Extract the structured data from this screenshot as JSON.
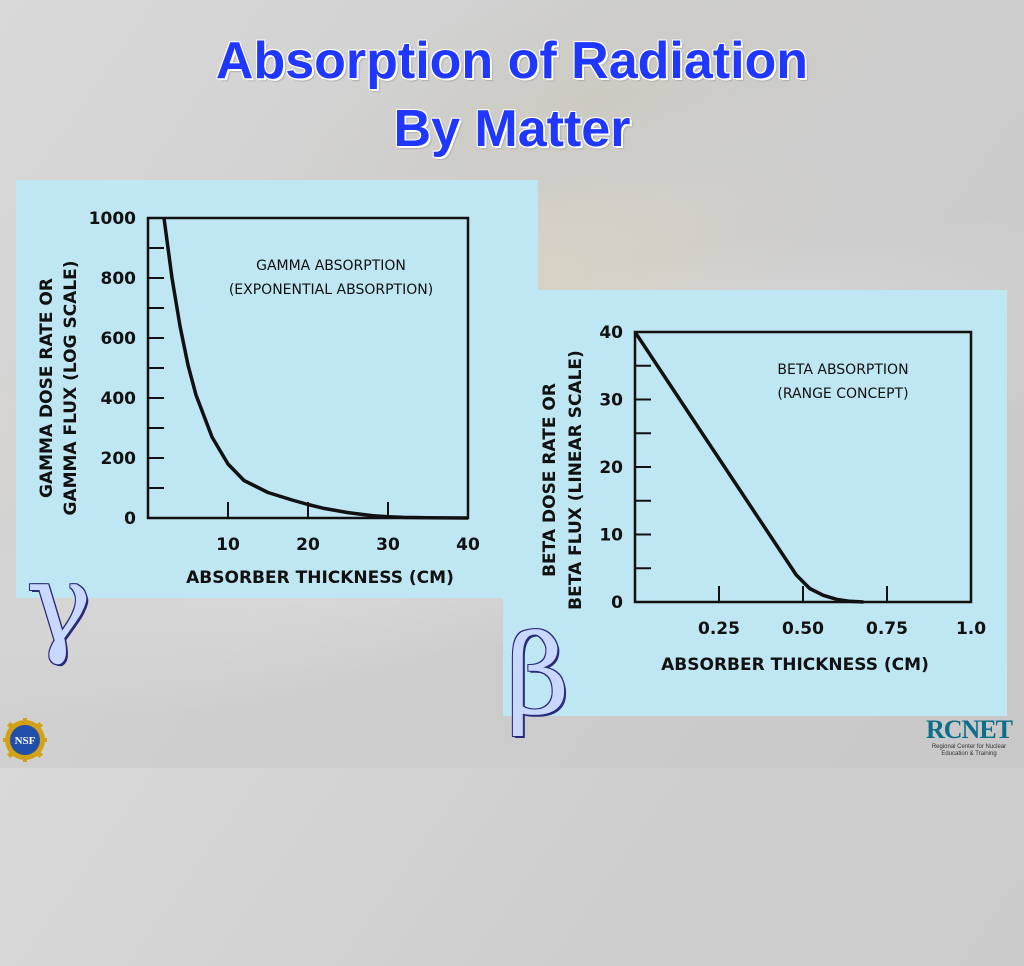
{
  "slide": {
    "title_line1": "Absorption of Radiation",
    "title_line2": "By Matter",
    "gamma_symbol": "γ",
    "beta_symbol": "β",
    "logo_left_text": "NSF",
    "logo_right_name": "RCNET",
    "logo_right_subtitle": "Regional Center for Nuclear Education & Training",
    "title_color": "#1f37ff",
    "panel_color": "#bfe6f3"
  },
  "chart_data": [
    {
      "type": "line",
      "title": "GAMMA ABSORPTION",
      "subtitle": "(EXPONENTIAL ABSORPTION)",
      "xlabel": "ABSORBER THICKNESS (CM)",
      "ylabel_line1": "GAMMA DOSE RATE OR",
      "ylabel_line2": "GAMMA FLUX   (LOG SCALE)",
      "xlim": [
        0,
        40
      ],
      "ylim": [
        0,
        1000
      ],
      "x_ticks": [
        10,
        20,
        30,
        40
      ],
      "x_tick_labels": [
        "10",
        "20",
        "30",
        "40"
      ],
      "y_ticks": [
        0,
        200,
        400,
        600,
        800,
        1000
      ],
      "y_tick_labels": [
        "0",
        "200",
        "400",
        "600",
        "800",
        "1000"
      ],
      "grid": false,
      "series": [
        {
          "x": [
            2,
            3,
            4,
            5,
            6,
            8,
            10,
            12,
            15,
            18,
            20,
            22,
            25,
            28,
            30,
            32,
            35,
            40
          ],
          "y": [
            1000,
            800,
            640,
            510,
            410,
            270,
            180,
            125,
            85,
            60,
            45,
            32,
            18,
            8,
            4,
            2,
            1,
            0
          ]
        }
      ]
    },
    {
      "type": "line",
      "title": "BETA ABSORPTION",
      "subtitle": "(RANGE CONCEPT)",
      "xlabel": "ABSORBER THICKNESS (CM)",
      "ylabel_line1": "BETA DOSE RATE OR",
      "ylabel_line2": "BETA FLUX   (LINEAR SCALE)",
      "xlim": [
        0,
        1.0
      ],
      "ylim": [
        0,
        40
      ],
      "x_ticks": [
        0.25,
        0.5,
        0.75,
        1.0
      ],
      "x_tick_labels": [
        "0.25",
        "0.50",
        "0.75",
        "1.0"
      ],
      "y_ticks": [
        0,
        10,
        20,
        30,
        40
      ],
      "y_tick_labels": [
        "0",
        "10",
        "20",
        "30",
        "40"
      ],
      "grid": false,
      "series": [
        {
          "x": [
            0,
            0.1,
            0.2,
            0.3,
            0.4,
            0.48,
            0.52,
            0.56,
            0.6,
            0.64,
            0.68
          ],
          "y": [
            40,
            32.5,
            25,
            17.5,
            10,
            4,
            2,
            1,
            0.4,
            0.1,
            0
          ]
        }
      ]
    }
  ]
}
